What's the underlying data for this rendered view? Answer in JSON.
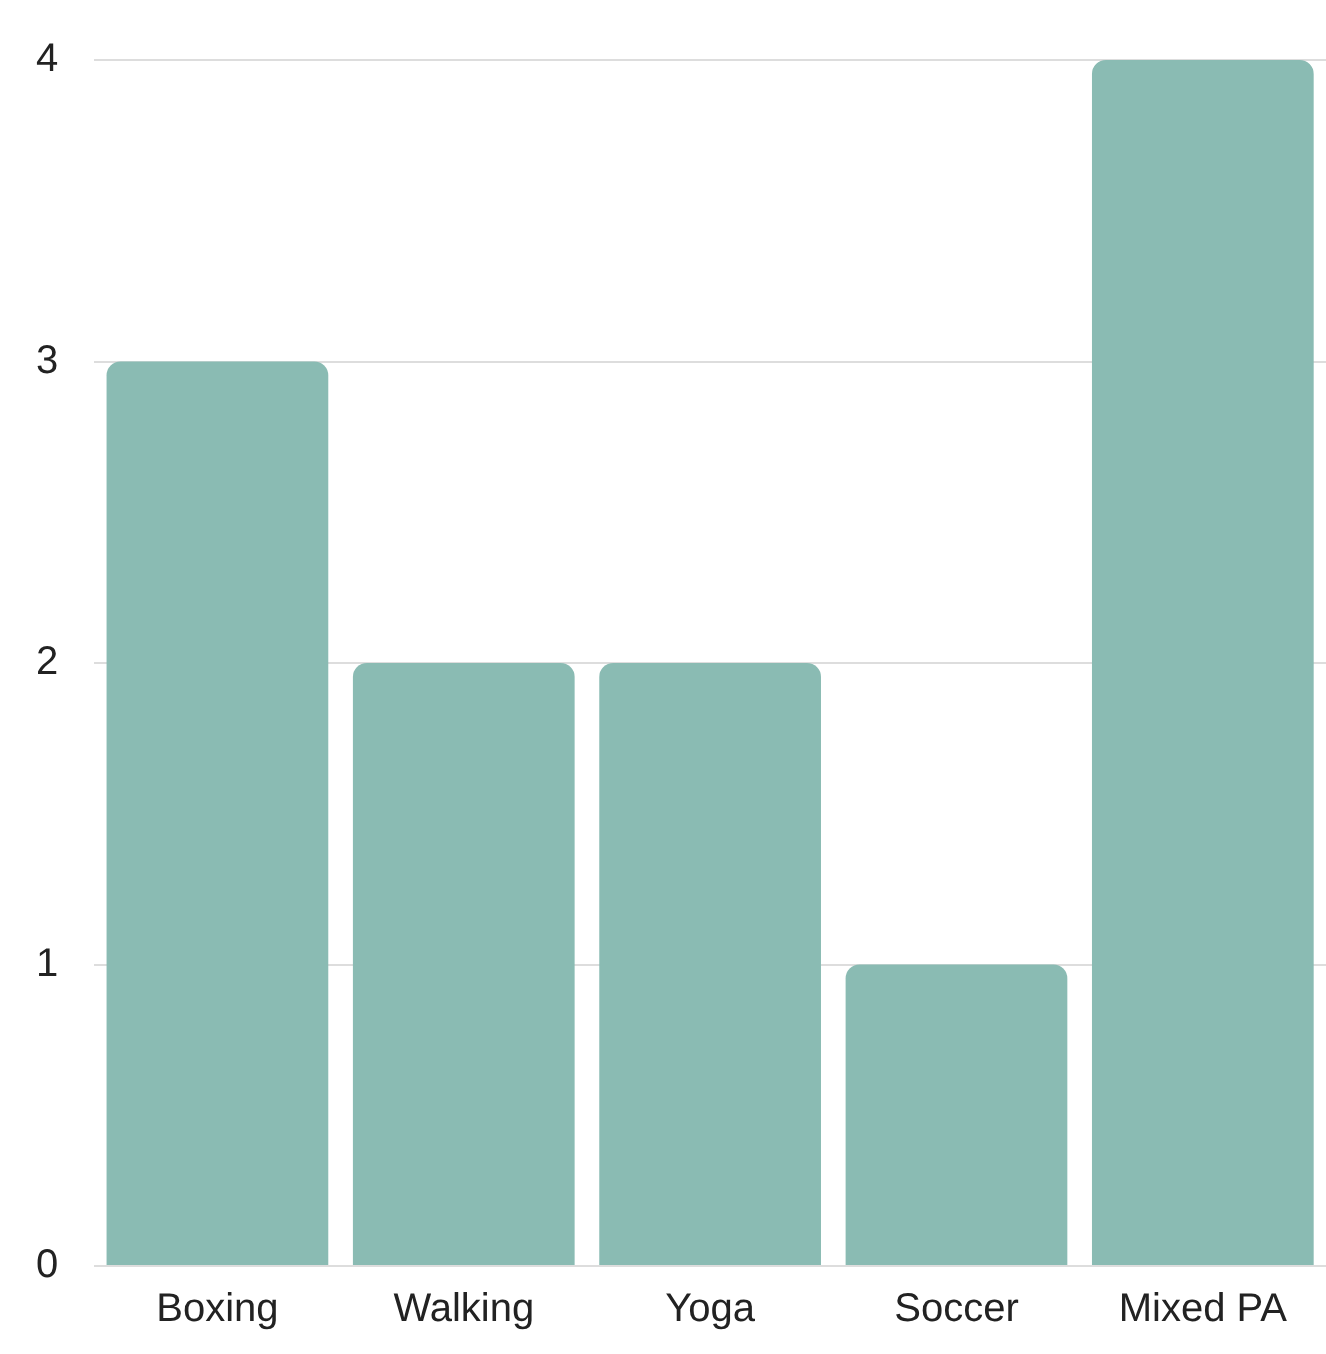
{
  "chart_data": {
    "type": "bar",
    "categories": [
      "Boxing",
      "Walking",
      "Yoga",
      "Soccer",
      "Mixed PA"
    ],
    "values": [
      3,
      2,
      2,
      1,
      4
    ],
    "color": "#8abbb3",
    "ylim": [
      0,
      4
    ],
    "yticks": [
      0,
      1,
      2,
      3,
      4
    ],
    "grid": "y",
    "legend": false
  }
}
